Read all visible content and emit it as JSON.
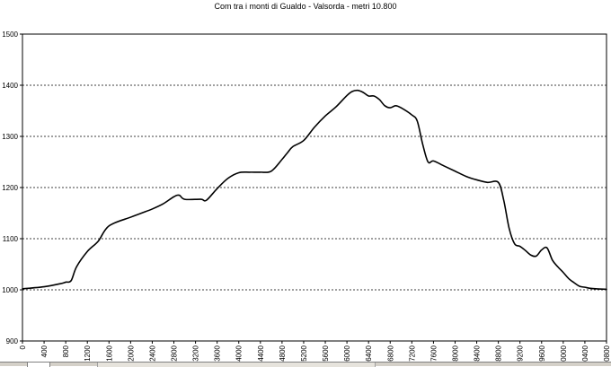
{
  "chart_data": {
    "type": "line",
    "title": "Com tra i monti di Gualdo - Valsorda - metri 10.800",
    "xlabel": "",
    "ylabel": "",
    "xlim": [
      0,
      10800
    ],
    "ylim": [
      900,
      1500
    ],
    "y_ticks": [
      900,
      1000,
      1100,
      1200,
      1300,
      1400,
      1500
    ],
    "x_ticks": [
      0,
      400,
      800,
      1200,
      1600,
      2000,
      2400,
      2800,
      3200,
      3600,
      4000,
      4400,
      4800,
      5200,
      5600,
      6000,
      6400,
      6800,
      7200,
      7600,
      8000,
      8400,
      8800,
      9200,
      9600,
      10000,
      10400,
      10800
    ],
    "grid": "horizontal dashed",
    "legend": "none",
    "line_color": "#000000",
    "series": [
      {
        "x": [
          0,
          400,
          700,
          800,
          900,
          1000,
          1200,
          1400,
          1600,
          2000,
          2200,
          2400,
          2600,
          2800,
          2900,
          3000,
          3300,
          3400,
          3600,
          3800,
          4000,
          4200,
          4400,
          4600,
          4800,
          4900,
          5000,
          5200,
          5400,
          5600,
          5800,
          6000,
          6100,
          6200,
          6300,
          6400,
          6500,
          6600,
          6700,
          6800,
          6900,
          7000,
          7200,
          7300,
          7400,
          7500,
          7600,
          7800,
          8000,
          8200,
          8400,
          8600,
          8800,
          8900,
          9000,
          9100,
          9200,
          9300,
          9400,
          9500,
          9600,
          9700,
          9800,
          9900,
          10000,
          10100,
          10200,
          10300,
          10400,
          10500,
          10600,
          10800
        ],
        "values": [
          1002,
          1006,
          1012,
          1015,
          1018,
          1045,
          1075,
          1095,
          1125,
          1142,
          1150,
          1158,
          1168,
          1182,
          1185,
          1177,
          1177,
          1175,
          1198,
          1218,
          1229,
          1230,
          1230,
          1232,
          1255,
          1268,
          1280,
          1292,
          1318,
          1340,
          1358,
          1380,
          1388,
          1390,
          1386,
          1379,
          1379,
          1372,
          1360,
          1356,
          1360,
          1356,
          1342,
          1330,
          1285,
          1250,
          1252,
          1242,
          1232,
          1222,
          1215,
          1210,
          1210,
          1175,
          1120,
          1090,
          1085,
          1077,
          1068,
          1066,
          1078,
          1082,
          1058,
          1045,
          1034,
          1022,
          1014,
          1007,
          1005,
          1003,
          1002,
          1001
        ]
      }
    ]
  },
  "ui": {
    "sheet_bar_color": "#d4d0c8"
  }
}
